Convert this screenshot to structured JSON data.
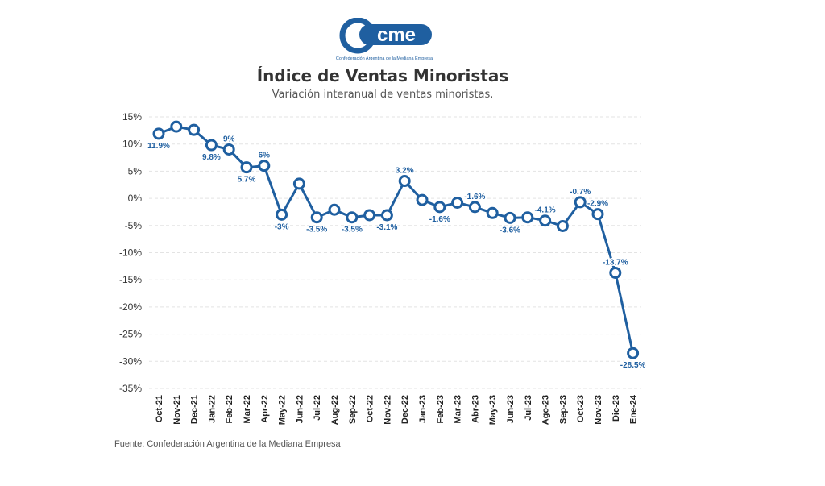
{
  "brand": {
    "logo_text": "cme",
    "logo_subtitle": "Confederación Argentina de la Mediana Empresa",
    "color": "#1f5fa0"
  },
  "source": "Fuente: Confederación Argentina de la Mediana Empresa",
  "chart_data": {
    "type": "line",
    "title": "Índice de Ventas Minoristas",
    "subtitle": "Variación interanual de ventas minoristas.",
    "line_color": "#1f5fa0",
    "label_color": "#1f5fa0",
    "grid": true,
    "ylim": [
      -35,
      15
    ],
    "yticks": [
      15,
      10,
      5,
      0,
      -5,
      -10,
      -15,
      -20,
      -25,
      -30,
      -35
    ],
    "ytick_labels": [
      "15%",
      "10%",
      "5%",
      "0%",
      "-5%",
      "-10%",
      "-15%",
      "-20%",
      "-25%",
      "-30%",
      "-35%"
    ],
    "categories": [
      "Oct-21",
      "Nov-21",
      "Dec-21",
      "Jan-22",
      "Feb-22",
      "Mar-22",
      "Apr-22",
      "May-22",
      "Jun-22",
      "Jul-22",
      "Aug-22",
      "Sep-22",
      "Oct-22",
      "Nov-22",
      "Dec-22",
      "Jan-23",
      "Feb-23",
      "Mar-23",
      "Abr-23",
      "May-23",
      "Jun-23",
      "Jul-23",
      "Ago-23",
      "Sep-23",
      "Oct-23",
      "Nov-23",
      "Dic-23",
      "Ene-24"
    ],
    "values": [
      11.9,
      13.2,
      12.6,
      9.8,
      9,
      5.7,
      6,
      -3,
      2.7,
      -3.5,
      -2.1,
      -3.5,
      -3.1,
      -3.1,
      3.2,
      -0.3,
      -1.6,
      -0.8,
      -1.6,
      -2.7,
      -3.6,
      -3.5,
      -4.1,
      -5.1,
      -0.7,
      -2.9,
      -13.7,
      -28.5
    ],
    "data_labels": [
      {
        "index": 0,
        "text": "11.9%"
      },
      {
        "index": 3,
        "text": "9.8%"
      },
      {
        "index": 4,
        "text": "9%"
      },
      {
        "index": 5,
        "text": "5.7%"
      },
      {
        "index": 6,
        "text": "6%"
      },
      {
        "index": 7,
        "text": "-3%"
      },
      {
        "index": 9,
        "text": "-3.5%"
      },
      {
        "index": 11,
        "text": "-3.5%"
      },
      {
        "index": 13,
        "text": "-3.1%"
      },
      {
        "index": 14,
        "text": "3.2%"
      },
      {
        "index": 16,
        "text": "-1.6%"
      },
      {
        "index": 18,
        "text": "-1.6%"
      },
      {
        "index": 20,
        "text": "-3.6%"
      },
      {
        "index": 22,
        "text": "-4.1%"
      },
      {
        "index": 24,
        "text": "-0.7%"
      },
      {
        "index": 25,
        "text": "-2.9%"
      },
      {
        "index": 26,
        "text": "-13.7%"
      },
      {
        "index": 27,
        "text": "-28.5%"
      }
    ]
  }
}
